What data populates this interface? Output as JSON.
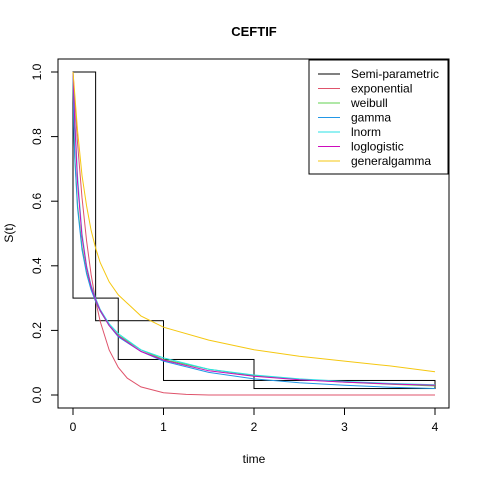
{
  "chart_data": {
    "type": "line",
    "title": "CEFTIF",
    "xlabel": "time",
    "ylabel": "S(t)",
    "xlim": [
      0,
      4
    ],
    "ylim": [
      0,
      1
    ],
    "xticks": [
      0,
      1,
      2,
      3,
      4
    ],
    "yticks": [
      0.0,
      0.2,
      0.4,
      0.6,
      0.8,
      1.0
    ],
    "xtick_labels": [
      "0",
      "1",
      "2",
      "3",
      "4"
    ],
    "ytick_labels": [
      "0.0",
      "0.2",
      "0.4",
      "0.6",
      "0.8",
      "1.0"
    ],
    "grid": false,
    "legend_position": "top-right",
    "semiparametric_boxes": [
      {
        "x0": 0.0,
        "x1": 0.25,
        "upper": 1.0,
        "lower": 0.3
      },
      {
        "x0": 0.25,
        "x1": 0.5,
        "upper": 0.3,
        "lower": 0.23
      },
      {
        "x0": 0.5,
        "x1": 1.0,
        "upper": 0.23,
        "lower": 0.11
      },
      {
        "x0": 1.0,
        "x1": 2.0,
        "upper": 0.11,
        "lower": 0.045
      },
      {
        "x0": 2.0,
        "x1": 4.0,
        "upper": 0.045,
        "lower": 0.02
      }
    ],
    "series": [
      {
        "name": "Semi-parametric",
        "color": "#000000"
      },
      {
        "name": "exponential",
        "color": "#DF536B",
        "x": [
          0,
          0.05,
          0.1,
          0.15,
          0.2,
          0.25,
          0.3,
          0.4,
          0.5,
          0.6,
          0.75,
          1.0,
          1.25,
          1.5,
          2.0,
          2.5,
          3.0,
          3.5,
          4.0
        ],
        "y": [
          1.0,
          0.781,
          0.611,
          0.477,
          0.373,
          0.292,
          0.228,
          0.139,
          0.085,
          0.052,
          0.025,
          0.007,
          0.002,
          0.0,
          0.0,
          0.0,
          0.0,
          0.0,
          0.0
        ]
      },
      {
        "name": "weibull",
        "color": "#61D04F",
        "x": [
          0,
          0.01,
          0.02,
          0.05,
          0.1,
          0.15,
          0.2,
          0.25,
          0.3,
          0.4,
          0.5,
          0.75,
          1.0,
          1.5,
          2.0,
          2.5,
          3.0,
          3.5,
          4.0
        ],
        "y": [
          1.0,
          0.83,
          0.74,
          0.59,
          0.46,
          0.38,
          0.33,
          0.29,
          0.26,
          0.215,
          0.185,
          0.14,
          0.11,
          0.08,
          0.06,
          0.048,
          0.04,
          0.033,
          0.028
        ]
      },
      {
        "name": "gamma",
        "color": "#2297E6",
        "x": [
          0,
          0.01,
          0.02,
          0.05,
          0.1,
          0.15,
          0.2,
          0.25,
          0.3,
          0.4,
          0.5,
          0.75,
          1.0,
          1.5,
          2.0,
          2.5,
          3.0,
          3.5,
          4.0
        ],
        "y": [
          1.0,
          0.82,
          0.73,
          0.58,
          0.45,
          0.375,
          0.325,
          0.29,
          0.26,
          0.215,
          0.18,
          0.135,
          0.105,
          0.07,
          0.05,
          0.038,
          0.03,
          0.024,
          0.02
        ]
      },
      {
        "name": "lnorm",
        "color": "#28E2E5",
        "x": [
          0,
          0.01,
          0.02,
          0.05,
          0.1,
          0.15,
          0.2,
          0.25,
          0.3,
          0.4,
          0.5,
          0.75,
          1.0,
          1.5,
          2.0,
          2.5,
          3.0,
          3.5,
          4.0
        ],
        "y": [
          1.0,
          0.93,
          0.86,
          0.68,
          0.5,
          0.4,
          0.34,
          0.3,
          0.265,
          0.22,
          0.19,
          0.14,
          0.115,
          0.08,
          0.062,
          0.05,
          0.042,
          0.036,
          0.032
        ]
      },
      {
        "name": "loglogistic",
        "color": "#CD0BBC",
        "x": [
          0,
          0.01,
          0.02,
          0.05,
          0.1,
          0.15,
          0.2,
          0.25,
          0.3,
          0.4,
          0.5,
          0.75,
          1.0,
          1.5,
          2.0,
          2.5,
          3.0,
          3.5,
          4.0
        ],
        "y": [
          1.0,
          0.92,
          0.84,
          0.66,
          0.49,
          0.395,
          0.335,
          0.295,
          0.262,
          0.215,
          0.183,
          0.135,
          0.108,
          0.075,
          0.058,
          0.047,
          0.04,
          0.034,
          0.03
        ]
      },
      {
        "name": "generalgamma",
        "color": "#F5C710",
        "x": [
          0,
          0.02,
          0.05,
          0.1,
          0.15,
          0.2,
          0.25,
          0.3,
          0.4,
          0.5,
          0.75,
          1.0,
          1.5,
          2.0,
          2.5,
          3.0,
          3.5,
          4.0
        ],
        "y": [
          1.0,
          0.93,
          0.82,
          0.68,
          0.585,
          0.51,
          0.455,
          0.41,
          0.35,
          0.31,
          0.245,
          0.21,
          0.17,
          0.14,
          0.12,
          0.105,
          0.09,
          0.072
        ]
      }
    ]
  }
}
